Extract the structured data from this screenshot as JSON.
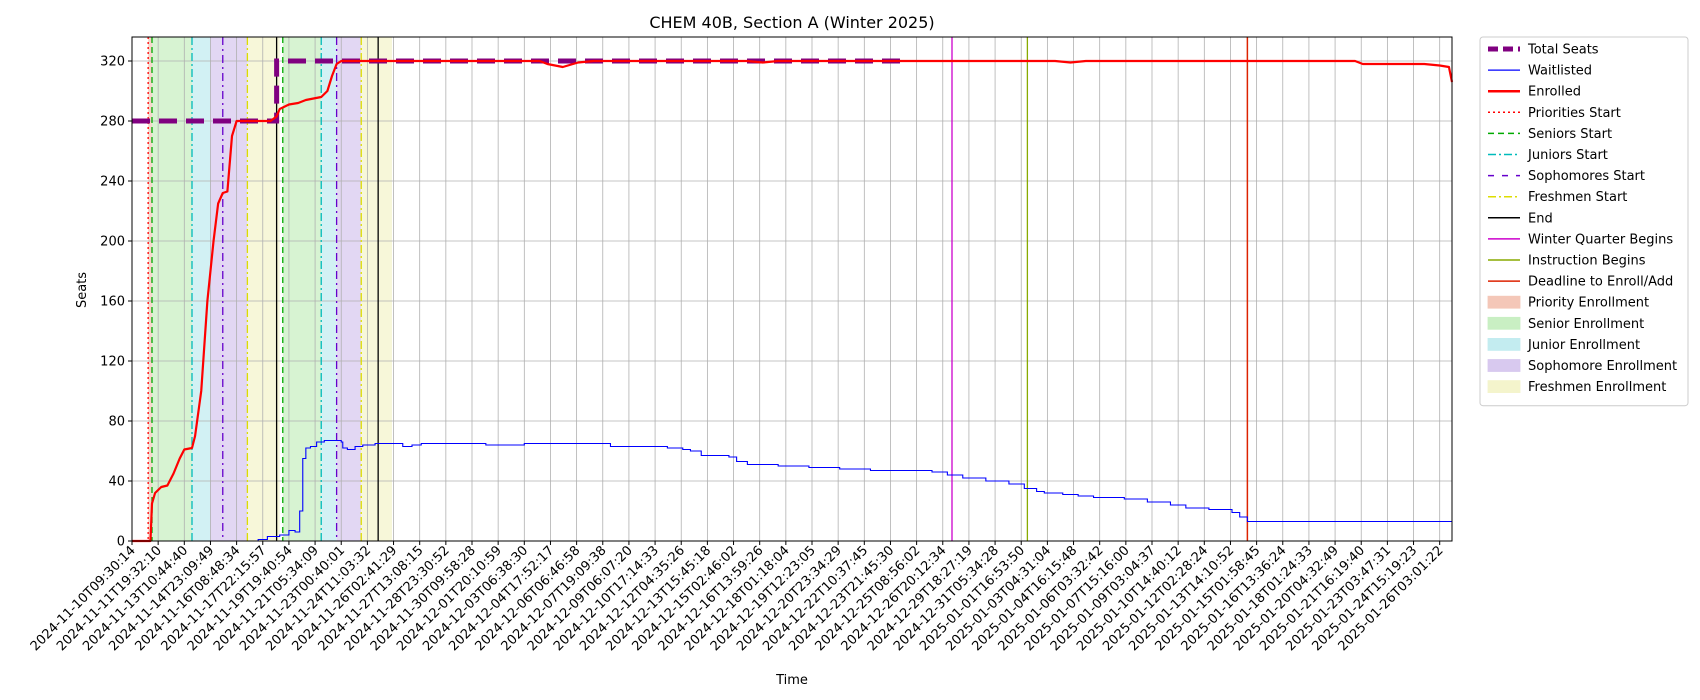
{
  "chart_data": {
    "type": "line",
    "title": "CHEM 40B, Section A (Winter 2025)",
    "xlabel": "Time",
    "ylabel": "Seats",
    "ylim": [
      0,
      336
    ],
    "yticks": [
      0,
      40,
      80,
      120,
      160,
      200,
      240,
      280,
      320
    ],
    "grid": true,
    "legend_position": "outside-right",
    "x_tick_labels": [
      "2024-11-10T09:30:14",
      "2024-11-11T19:32:10",
      "2024-11-13T10:44:40",
      "2024-11-14T23:09:49",
      "2024-11-16T08:48:34",
      "2024-11-17T22:15:57",
      "2024-11-19T19:40:54",
      "2024-11-21T05:34:09",
      "2024-11-23T00:40:01",
      "2024-11-24T11:03:32",
      "2024-11-26T02:41:29",
      "2024-11-27T13:08:15",
      "2024-11-28T23:30:52",
      "2024-11-30T09:58:28",
      "2024-12-01T20:10:59",
      "2024-12-03T06:38:30",
      "2024-12-04T17:52:17",
      "2024-12-06T06:46:58",
      "2024-12-07T19:09:38",
      "2024-12-09T06:07:20",
      "2024-12-10T17:14:33",
      "2024-12-12T04:35:26",
      "2024-12-13T15:45:18",
      "2024-12-15T02:46:02",
      "2024-12-16T13:59:26",
      "2024-12-18T01:18:04",
      "2024-12-19T12:23:05",
      "2024-12-20T23:34:29",
      "2024-12-22T10:37:45",
      "2024-12-23T21:45:30",
      "2024-12-25T08:56:02",
      "2024-12-26T20:12:34",
      "2024-12-29T18:27:19",
      "2024-12-31T05:34:28",
      "2025-01-01T16:53:50",
      "2025-01-03T04:31:04",
      "2025-01-04T16:15:48",
      "2025-01-06T03:32:42",
      "2025-01-07T15:16:00",
      "2025-01-09T03:04:37",
      "2025-01-10T14:40:12",
      "2025-01-12T02:28:24",
      "2025-01-13T14:10:52",
      "2025-01-15T01:58:45",
      "2025-01-16T13:36:24",
      "2025-01-18T01:24:33",
      "2025-01-20T04:32:49",
      "2025-01-21T16:19:40",
      "2025-01-23T03:47:31",
      "2025-01-24T15:19:23",
      "2025-01-26T03:01:22"
    ],
    "series": [
      {
        "name": "Total Seats",
        "color": "#800080",
        "style": "dashed-thick",
        "points": [
          [
            0,
            280
          ],
          [
            9.4,
            280
          ],
          [
            9.4,
            320
          ],
          [
            50.5,
            320
          ]
        ]
      },
      {
        "name": "Waitlisted",
        "color": "#0000ff",
        "style": "solid-thin",
        "points": [
          [
            0,
            0
          ],
          [
            7.8,
            0
          ],
          [
            8.2,
            1
          ],
          [
            8.8,
            3
          ],
          [
            9.6,
            4
          ],
          [
            10.2,
            7
          ],
          [
            10.6,
            6
          ],
          [
            10.9,
            20
          ],
          [
            11.1,
            55
          ],
          [
            11.3,
            62
          ],
          [
            11.6,
            63
          ],
          [
            12.0,
            66
          ],
          [
            12.5,
            67
          ],
          [
            13.4,
            67
          ],
          [
            13.6,
            66
          ],
          [
            13.7,
            62
          ],
          [
            14.0,
            61
          ],
          [
            14.5,
            63
          ],
          [
            15.0,
            64
          ],
          [
            15.8,
            65
          ],
          [
            17.5,
            65
          ],
          [
            17.6,
            63
          ],
          [
            18.2,
            64
          ],
          [
            18.8,
            65
          ],
          [
            19.5,
            65
          ],
          [
            20.5,
            65
          ],
          [
            22.5,
            65
          ],
          [
            23.0,
            64
          ],
          [
            25.5,
            65
          ],
          [
            27.5,
            65
          ],
          [
            31.0,
            65
          ],
          [
            31.1,
            63
          ],
          [
            34.0,
            63
          ],
          [
            34.8,
            62
          ],
          [
            35.8,
            61
          ],
          [
            36.3,
            60
          ],
          [
            37.0,
            57
          ],
          [
            38.8,
            56
          ],
          [
            39.3,
            53
          ],
          [
            40.0,
            51
          ],
          [
            42.0,
            50
          ],
          [
            44.0,
            49
          ],
          [
            46.0,
            48
          ],
          [
            48.0,
            47
          ],
          [
            51.5,
            47
          ],
          [
            52.0,
            46
          ],
          [
            53.0,
            44
          ],
          [
            54.0,
            42
          ],
          [
            55.5,
            40
          ],
          [
            57.0,
            38
          ],
          [
            58.0,
            35
          ],
          [
            58.8,
            33
          ],
          [
            59.3,
            32
          ],
          [
            60.5,
            31
          ],
          [
            61.5,
            30
          ],
          [
            62.5,
            29
          ],
          [
            64.5,
            28
          ],
          [
            66.0,
            26
          ],
          [
            67.5,
            24
          ],
          [
            68.5,
            22
          ],
          [
            70.0,
            21
          ],
          [
            71.5,
            19
          ],
          [
            72.0,
            16
          ],
          [
            72.5,
            13
          ],
          [
            80.0,
            13
          ],
          [
            85.8,
            13
          ]
        ]
      },
      {
        "name": "Enrolled",
        "color": "#ff0000",
        "style": "solid-thick",
        "points": [
          [
            0,
            0
          ],
          [
            1.2,
            0
          ],
          [
            1.3,
            25
          ],
          [
            1.5,
            32
          ],
          [
            1.9,
            36
          ],
          [
            2.3,
            37
          ],
          [
            2.7,
            45
          ],
          [
            3.1,
            55
          ],
          [
            3.4,
            61
          ],
          [
            3.9,
            62
          ],
          [
            4.1,
            70
          ],
          [
            4.5,
            100
          ],
          [
            4.9,
            160
          ],
          [
            5.3,
            200
          ],
          [
            5.6,
            225
          ],
          [
            5.9,
            232
          ],
          [
            6.2,
            233
          ],
          [
            6.5,
            270
          ],
          [
            6.8,
            280
          ],
          [
            7.5,
            280
          ],
          [
            8.0,
            280
          ],
          [
            9.0,
            280
          ],
          [
            9.4,
            283
          ],
          [
            9.6,
            288
          ],
          [
            10.2,
            291
          ],
          [
            10.8,
            292
          ],
          [
            11.3,
            294
          ],
          [
            11.8,
            295
          ],
          [
            12.3,
            296
          ],
          [
            12.7,
            300
          ],
          [
            13.0,
            310
          ],
          [
            13.3,
            318
          ],
          [
            13.6,
            320
          ],
          [
            26.5,
            320
          ],
          [
            27.0,
            318
          ],
          [
            28.0,
            316
          ],
          [
            29.0,
            319
          ],
          [
            30.0,
            320
          ],
          [
            40.0,
            320
          ],
          [
            41.0,
            319
          ],
          [
            42.0,
            320
          ],
          [
            60.0,
            320
          ],
          [
            61.0,
            319
          ],
          [
            62.0,
            320
          ],
          [
            70.0,
            320
          ],
          [
            79.5,
            320
          ],
          [
            80.0,
            318
          ],
          [
            84.0,
            318
          ],
          [
            85.0,
            317
          ],
          [
            85.6,
            316
          ],
          [
            85.8,
            306
          ]
        ]
      }
    ],
    "event_lines": [
      {
        "name": "Priorities Start",
        "x": 1.05,
        "color": "#ff0000",
        "dash": "2,3",
        "width": 1.3
      },
      {
        "name": "Seniors Start",
        "x": 1.3,
        "color": "#00aa00",
        "dash": "6,4",
        "width": 1.3
      },
      {
        "name": "Juniors Start",
        "x": 3.9,
        "color": "#00bbbb",
        "dash": "8,3,2,3",
        "width": 1.3
      },
      {
        "name": "Sophomores Start",
        "x": 5.9,
        "color": "#6600cc",
        "dash": "8,4,2,4",
        "width": 1.3
      },
      {
        "name": "Freshmen Start",
        "x": 7.5,
        "color": "#dddd00",
        "dash": "8,3,2,3",
        "width": 1.3
      },
      {
        "name": "End",
        "x": 9.4,
        "color": "#000000",
        "dash": "",
        "width": 1.3
      },
      {
        "name": "Seniors Start",
        "x": 9.8,
        "color": "#00aa00",
        "dash": "6,4",
        "width": 1.3
      },
      {
        "name": "Juniors Start",
        "x": 12.3,
        "color": "#00bbbb",
        "dash": "8,3,2,3",
        "width": 1.3
      },
      {
        "name": "Sophomores Start",
        "x": 13.3,
        "color": "#6600cc",
        "dash": "8,4,2,4",
        "width": 1.3
      },
      {
        "name": "Freshmen Start",
        "x": 14.9,
        "color": "#dddd00",
        "dash": "8,3,2,3",
        "width": 1.3
      },
      {
        "name": "End",
        "x": 16.0,
        "color": "#000000",
        "dash": "",
        "width": 1.3
      },
      {
        "name": "Winter Quarter Begins",
        "x": 53.3,
        "color": "#cc00cc",
        "dash": "",
        "width": 1.3
      },
      {
        "name": "Instruction Begins",
        "x": 58.2,
        "color": "#88aa00",
        "dash": "",
        "width": 1.3
      },
      {
        "name": "Deadline to Enroll/Add",
        "x": 72.5,
        "color": "#dd2200",
        "dash": "",
        "width": 1.5
      }
    ],
    "shaded_periods": [
      {
        "name": "Priority Enrollment",
        "x0": 1.05,
        "x1": 1.3,
        "color": "#f4c7b8"
      },
      {
        "name": "Senior Enrollment",
        "x0": 1.3,
        "x1": 3.9,
        "color": "#c9efc3"
      },
      {
        "name": "Junior Enrollment",
        "x0": 3.9,
        "x1": 5.1,
        "color": "#c3ecf0"
      },
      {
        "name": "Sophomore Enrollment",
        "x0": 5.1,
        "x1": 7.5,
        "color": "#d8c9ef"
      },
      {
        "name": "Freshmen Enrollment",
        "x0": 7.5,
        "x1": 9.6,
        "color": "#f4f4cc"
      },
      {
        "name": "Senior Enrollment",
        "x0": 9.8,
        "x1": 12.3,
        "color": "#c9efc3"
      },
      {
        "name": "Junior Enrollment",
        "x0": 12.3,
        "x1": 13.3,
        "color": "#c3ecf0"
      },
      {
        "name": "Sophomore Enrollment",
        "x0": 13.3,
        "x1": 14.9,
        "color": "#d8c9ef"
      },
      {
        "name": "Freshmen Enrollment",
        "x0": 14.9,
        "x1": 16.9,
        "color": "#f4f4cc"
      }
    ],
    "legend": [
      {
        "label": "Total Seats",
        "kind": "line",
        "color": "#800080",
        "dash": "10,5",
        "width": 5
      },
      {
        "label": "Waitlisted",
        "kind": "line",
        "color": "#0000ff",
        "dash": "",
        "width": 1.3
      },
      {
        "label": "Enrolled",
        "kind": "line",
        "color": "#ff0000",
        "dash": "",
        "width": 2.5
      },
      {
        "label": "Priorities Start",
        "kind": "line",
        "color": "#ff0000",
        "dash": "2,3",
        "width": 1.5
      },
      {
        "label": "Seniors Start",
        "kind": "line",
        "color": "#00aa00",
        "dash": "6,4",
        "width": 1.5
      },
      {
        "label": "Juniors Start",
        "kind": "line",
        "color": "#00bbbb",
        "dash": "8,3,2,3",
        "width": 1.5
      },
      {
        "label": "Sophomores Start",
        "kind": "line",
        "color": "#6600cc",
        "dash": "6,8",
        "width": 1.5
      },
      {
        "label": "Freshmen Start",
        "kind": "line",
        "color": "#dddd00",
        "dash": "8,3,2,3",
        "width": 1.5
      },
      {
        "label": "End",
        "kind": "line",
        "color": "#000000",
        "dash": "",
        "width": 1.5
      },
      {
        "label": "Winter Quarter Begins",
        "kind": "line",
        "color": "#cc00cc",
        "dash": "",
        "width": 1.5
      },
      {
        "label": "Instruction Begins",
        "kind": "line",
        "color": "#88aa00",
        "dash": "",
        "width": 1.5
      },
      {
        "label": "Deadline to Enroll/Add",
        "kind": "line",
        "color": "#dd2200",
        "dash": "",
        "width": 1.5
      },
      {
        "label": "Priority Enrollment",
        "kind": "patch",
        "color": "#f4c7b8"
      },
      {
        "label": "Senior Enrollment",
        "kind": "patch",
        "color": "#c9efc3"
      },
      {
        "label": "Junior Enrollment",
        "kind": "patch",
        "color": "#c3ecf0"
      },
      {
        "label": "Sophomore Enrollment",
        "kind": "patch",
        "color": "#d8c9ef"
      },
      {
        "label": "Freshmen Enrollment",
        "kind": "patch",
        "color": "#f4f4cc"
      }
    ]
  }
}
